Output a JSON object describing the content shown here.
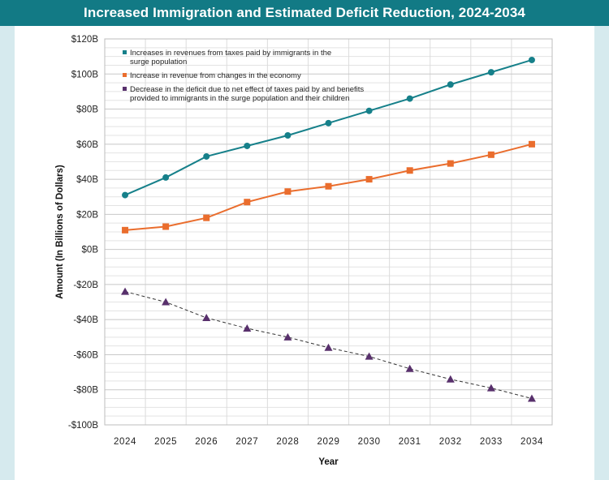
{
  "page": {
    "title": "Increased Immigration and Estimated Deficit Reduction, 2024-2034"
  },
  "chart_data": {
    "type": "line",
    "title": "Increased Immigration and Estimated Deficit Reduction, 2024-2034",
    "xlabel": "Year",
    "ylabel": "Amount (In Billions of Dollars)",
    "ylim": [
      -100,
      120
    ],
    "y_ticks": [
      120,
      100,
      80,
      60,
      40,
      20,
      0,
      -20,
      -40,
      -60,
      -80,
      -100
    ],
    "y_tick_labels": [
      "$120B",
      "$100B",
      "$80B",
      "$60B",
      "$40B",
      "$20B",
      "$0B",
      "-$20B",
      "-$40B",
      "-$60B",
      "-$80B",
      "-$100B"
    ],
    "grid": true,
    "legend_position": "top-left",
    "categories": [
      "2024",
      "2025",
      "2026",
      "2027",
      "2028",
      "2029",
      "2030",
      "2031",
      "2032",
      "2033",
      "2034"
    ],
    "series": [
      {
        "name": "Increases in revenues from taxes paid by immigrants in the surge population",
        "legend_lines": [
          "Increases in revenues from taxes paid by immigrants in the",
          "surge population"
        ],
        "values": [
          31,
          41,
          53,
          59,
          65,
          72,
          79,
          86,
          94,
          101,
          108
        ],
        "color": "#16808a",
        "marker": "circle",
        "dash": false
      },
      {
        "name": "Increase in revenue from changes in the economy",
        "legend_lines": [
          "Increase in revenue from changes in the economy"
        ],
        "values": [
          11,
          13,
          18,
          27,
          33,
          36,
          40,
          45,
          49,
          54,
          60
        ],
        "color": "#ea6d2d",
        "marker": "square",
        "dash": false
      },
      {
        "name": "Decrease in the deficit due to net effect of taxes paid by and benefits provided to immigrants in the surge population and their children",
        "legend_lines": [
          "Decrease in the deficit due to net effect of taxes paid by and benefits",
          "provided to immigrants in the surge population and their children"
        ],
        "values": [
          -24,
          -30,
          -39,
          -45,
          -50,
          -56,
          -61,
          -68,
          -74,
          -79,
          -85
        ],
        "color": "#58306c",
        "marker": "triangle",
        "dash": true
      }
    ]
  }
}
